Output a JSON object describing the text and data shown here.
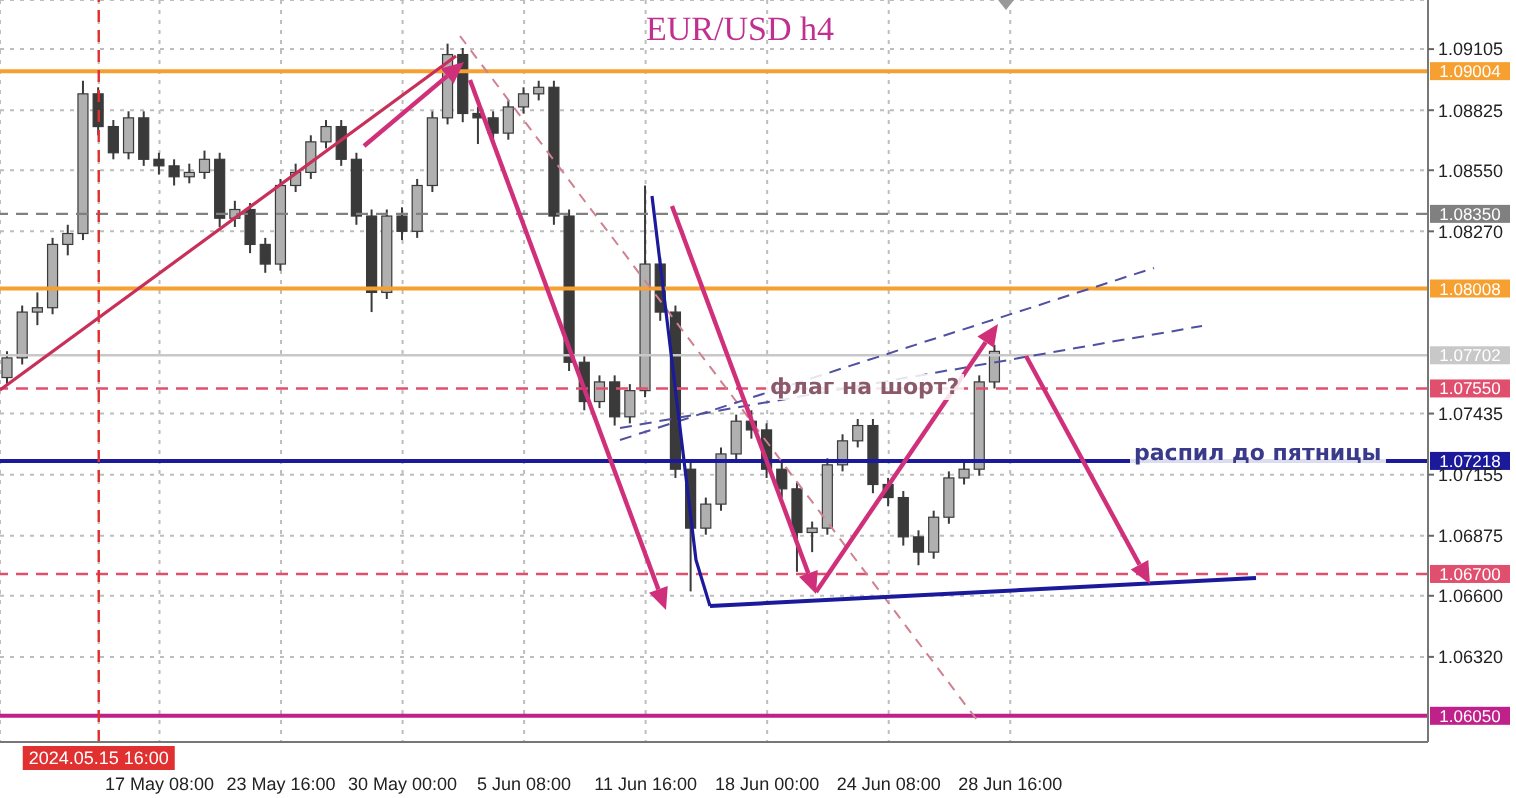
{
  "chart_data": {
    "type": "candlestick",
    "title": "EUR/USD h4",
    "categories": [
      null,
      null,
      null,
      null,
      null,
      null,
      "2024.05.15 16:00",
      null,
      null,
      null,
      "17 May 08:00",
      null,
      null,
      null,
      null,
      null,
      null,
      null,
      "23 May 16:00",
      null,
      null,
      null,
      null,
      null,
      null,
      null,
      "30 May 00:00",
      null,
      null,
      null,
      null,
      null,
      null,
      null,
      "5 Jun 08:00",
      null,
      null,
      null,
      null,
      null,
      null,
      null,
      "11 Jun 16:00",
      null,
      null,
      null,
      null,
      null,
      null,
      null,
      "18 Jun 00:00",
      null,
      null,
      null,
      null,
      null,
      null,
      null,
      "24 Jun 08:00",
      null,
      null,
      null,
      null,
      null,
      null,
      null,
      "28 Jun 16:00",
      null,
      null,
      null,
      null,
      null,
      null,
      null,
      null,
      null,
      null,
      null,
      null,
      null,
      null,
      null,
      null,
      null,
      null,
      null,
      null,
      null,
      null,
      null,
      null,
      null,
      null,
      null
    ],
    "ohlc": [
      [
        1.076,
        1.0772,
        1.0757,
        1.0769
      ],
      [
        1.0769,
        1.0793,
        1.0766,
        1.079
      ],
      [
        1.079,
        1.0799,
        1.0784,
        1.0792
      ],
      [
        1.0792,
        1.0824,
        1.0789,
        1.0821
      ],
      [
        1.0821,
        1.083,
        1.0816,
        1.0826
      ],
      [
        1.0826,
        1.0896,
        1.0823,
        1.089
      ],
      [
        1.089,
        1.0893,
        1.0871,
        1.0875
      ],
      [
        1.0875,
        1.0878,
        1.086,
        1.0863
      ],
      [
        1.0863,
        1.0882,
        1.086,
        1.0879
      ],
      [
        1.0879,
        1.0882,
        1.0857,
        1.086
      ],
      [
        1.086,
        1.0863,
        1.0853,
        1.0857
      ],
      [
        1.0857,
        1.086,
        1.0848,
        1.0852
      ],
      [
        1.0852,
        1.0858,
        1.0849,
        1.0854
      ],
      [
        1.0854,
        1.0864,
        1.0851,
        1.086
      ],
      [
        1.086,
        1.0863,
        1.0829,
        1.0833
      ],
      [
        1.0833,
        1.0841,
        1.0829,
        1.0837
      ],
      [
        1.0837,
        1.084,
        1.0817,
        1.0821
      ],
      [
        1.0821,
        1.0824,
        1.0808,
        1.0812
      ],
      [
        1.0812,
        1.0851,
        1.0809,
        1.0848
      ],
      [
        1.0848,
        1.0858,
        1.0845,
        1.0854
      ],
      [
        1.0854,
        1.0871,
        1.0851,
        1.0868
      ],
      [
        1.0868,
        1.0878,
        1.0865,
        1.0875
      ],
      [
        1.0875,
        1.0878,
        1.0857,
        1.086
      ],
      [
        1.086,
        1.0863,
        1.083,
        1.0834
      ],
      [
        1.0834,
        1.0837,
        1.079,
        1.0799
      ],
      [
        1.0799,
        1.0837,
        1.0796,
        1.0834
      ],
      [
        1.0834,
        1.0838,
        1.0823,
        1.0827
      ],
      [
        1.0827,
        1.0851,
        1.0824,
        1.0848
      ],
      [
        1.0848,
        1.0882,
        1.0845,
        1.0879
      ],
      [
        1.0879,
        1.0913,
        1.0876,
        1.0908
      ],
      [
        1.0908,
        1.0911,
        1.0877,
        1.0881
      ],
      [
        1.0881,
        1.0884,
        1.0867,
        1.0879
      ],
      [
        1.0879,
        1.0882,
        1.0868,
        1.0872
      ],
      [
        1.0872,
        1.0887,
        1.0869,
        1.0884
      ],
      [
        1.0884,
        1.0893,
        1.0881,
        1.089
      ],
      [
        1.089,
        1.0896,
        1.0887,
        1.0893
      ],
      [
        1.0893,
        1.0896,
        1.083,
        1.0834
      ],
      [
        1.0834,
        1.0837,
        1.0763,
        1.0767
      ],
      [
        1.0767,
        1.077,
        1.0745,
        1.0749
      ],
      [
        1.0749,
        1.0761,
        1.0746,
        1.0758
      ],
      [
        1.0758,
        1.0761,
        1.0738,
        1.0742
      ],
      [
        1.0742,
        1.0757,
        1.0739,
        1.0754
      ],
      [
        1.0754,
        1.0848,
        1.0751,
        1.0812
      ],
      [
        1.0812,
        1.0815,
        1.0786,
        1.079
      ],
      [
        1.079,
        1.0793,
        1.0714,
        1.0718
      ],
      [
        1.0718,
        1.0721,
        1.0662,
        1.0691
      ],
      [
        1.0691,
        1.0705,
        1.0688,
        1.0702
      ],
      [
        1.0702,
        1.0728,
        1.0699,
        1.0725
      ],
      [
        1.0725,
        1.0743,
        1.0722,
        1.074
      ],
      [
        1.074,
        1.0745,
        1.0732,
        1.0736
      ],
      [
        1.0736,
        1.0739,
        1.0714,
        1.0718
      ],
      [
        1.0718,
        1.0721,
        1.0705,
        1.0709
      ],
      [
        1.0709,
        1.0712,
        1.0671,
        1.0689
      ],
      [
        1.0689,
        1.0694,
        1.068,
        1.0691
      ],
      [
        1.0691,
        1.0723,
        1.0688,
        1.072
      ],
      [
        1.072,
        1.0734,
        1.0717,
        1.0731
      ],
      [
        1.0731,
        1.0741,
        1.0728,
        1.0738
      ],
      [
        1.0738,
        1.0741,
        1.0707,
        1.0711
      ],
      [
        1.0711,
        1.0714,
        1.0701,
        1.0705
      ],
      [
        1.0705,
        1.0708,
        1.0683,
        1.0687
      ],
      [
        1.0687,
        1.069,
        1.0674,
        1.068
      ],
      [
        1.068,
        1.0699,
        1.0677,
        1.0696
      ],
      [
        1.0696,
        1.0717,
        1.0693,
        1.0714
      ],
      [
        1.0714,
        1.0721,
        1.0711,
        1.0718
      ],
      [
        1.0718,
        1.0761,
        1.0715,
        1.0758
      ],
      [
        1.0758,
        1.0775,
        1.0755,
        1.0772
      ],
      null,
      null,
      null,
      null,
      null,
      null,
      null,
      null,
      null,
      null,
      null,
      null,
      null,
      null,
      null,
      null,
      null,
      null,
      null,
      null,
      null,
      null,
      null,
      null,
      null,
      null,
      null,
      null
    ],
    "color": "#3a3a3a",
    "ylim": [
      1.0593,
      1.0933
    ],
    "yticks": [
      1.09105,
      1.08825,
      {
        "value": 1.0855,
        "label": "1.08550"
      },
      {
        "value": 1.0827,
        "label": "1.08270"
      },
      1.07435,
      1.07155,
      1.06875,
      {
        "value": 1.066,
        "label": "1.06600"
      },
      {
        "value": 1.0632,
        "label": "1.06320"
      }
    ],
    "grid": true,
    "ref_lines": [
      {
        "axis": "y",
        "value": 1.09004,
        "label": "1.09004",
        "color": "#f5a030",
        "line_style": "solid"
      },
      {
        "axis": "y",
        "value": 1.0835,
        "label": "1.08350",
        "color": "#808080",
        "line_style": "dashed"
      },
      {
        "axis": "y",
        "value": 1.08008,
        "label": "1.08008",
        "color": "#f5a030",
        "line_style": "solid"
      },
      {
        "axis": "y",
        "value": 1.07702,
        "label": "1.07702",
        "color": "#c8c8c8",
        "line_style": "solid"
      },
      {
        "axis": "y",
        "value": 1.0755,
        "label": "1.07550",
        "color": "#e0506e",
        "line_style": "dashed"
      },
      {
        "axis": "y",
        "value": 1.07218,
        "label": "1.07218",
        "color": "#1a1a9a",
        "line_style": "solid"
      },
      {
        "axis": "y",
        "value": 1.067,
        "label": "1.06700",
        "color": "#e0506e",
        "line_style": "dashed"
      },
      {
        "axis": "y",
        "value": 1.0605,
        "label": "1.06050",
        "color": "#c0208a",
        "line_style": "solid"
      },
      {
        "axis": "x",
        "value": "2024.05.15 16:00",
        "color": "#e03030",
        "line_style": "dashed"
      }
    ],
    "annotations": [
      "флаг на шорт?",
      "распил до пятницы"
    ]
  }
}
